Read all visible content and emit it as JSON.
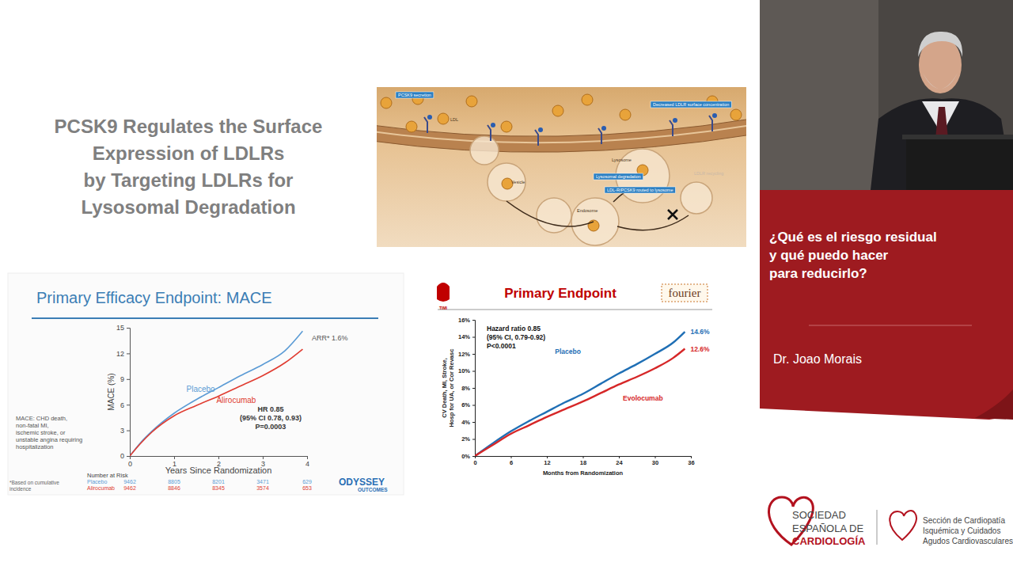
{
  "slide": {
    "title": [
      "PCSK9 Regulates the Surface",
      "Expression of LDLRs",
      "by Targeting LDLRs for",
      "Lysosomal Degradation"
    ]
  },
  "diagram": {
    "labels": [
      "PCSK9 secretion",
      "LDL",
      "Decreased LDLR surface concentration",
      "Lysosome",
      "Lysosomal degradation",
      "LDL-R/PCSK9 routed to lysosome",
      "Endosome",
      "Vesicle",
      "LDLR recycling"
    ]
  },
  "sidebar": {
    "talk_title": [
      "¿Qué es el riesgo residual",
      "y qué puedo hacer",
      "para reducirlo?"
    ],
    "speaker": "Dr. Joao Morais",
    "society": [
      "SOCIEDAD",
      "ESPAÑOLA DE",
      "CARDIOLOGÍA"
    ],
    "section": [
      "Sección de Cardiopatía",
      "Isquémica y Cuidados",
      "Agudos Cardiovasculares"
    ]
  },
  "chart_data": [
    {
      "type": "line",
      "title": "Primary Efficacy Endpoint: MACE",
      "x_label": "Years Since Randomization",
      "y_label": "MACE (%)",
      "x": [
        0,
        0.25,
        0.5,
        1,
        1.5,
        2,
        2.5,
        3,
        3.5,
        3.9
      ],
      "series": [
        {
          "name": "Placebo",
          "color": "#5b9bd5",
          "values": [
            0,
            1.6,
            2.9,
            5.0,
            6.6,
            8.0,
            9.4,
            10.7,
            12.3,
            14.6
          ]
        },
        {
          "name": "Alirocumab",
          "color": "#e03c31",
          "values": [
            0,
            1.5,
            2.8,
            4.7,
            5.9,
            7.0,
            8.2,
            9.4,
            10.9,
            12.5
          ]
        }
      ],
      "xlim": [
        0,
        4
      ],
      "xticks": [
        0,
        1,
        2,
        3,
        4
      ],
      "ylim": [
        0,
        15
      ],
      "yticks": [
        0,
        3,
        6,
        9,
        12,
        15
      ],
      "annotations": [
        "ARR* 1.6%",
        "HR 0.85",
        "(95% CI 0.78, 0.93)",
        "P=0.0003"
      ],
      "notes": [
        "MACE: CHD death,",
        "non-fatal MI,",
        "ischemic stroke, or",
        "unstable angina requiring",
        "hospitalization"
      ],
      "footnote": [
        "*Based on cumulative",
        "incidence"
      ],
      "risk_table": {
        "title": "Number at Risk",
        "rows": [
          {
            "name": "Placebo",
            "values": [
              9462,
              8805,
              8201,
              3471,
              629
            ]
          },
          {
            "name": "Alirocumab",
            "values": [
              9462,
              8846,
              8345,
              3574,
              653
            ]
          }
        ]
      },
      "logo": [
        "ODYSSEY",
        "OUTCOMES"
      ]
    },
    {
      "type": "line",
      "title": "Primary Endpoint",
      "x_label": "Months from Randomization",
      "y_label": [
        "CV Death, MI, Stroke,",
        "Hosp for UA, or Cor Revasc"
      ],
      "x": [
        0,
        3,
        6,
        9,
        12,
        15,
        18,
        21,
        24,
        27,
        30,
        33,
        35
      ],
      "series": [
        {
          "name": "Placebo",
          "color": "#1f6fb5",
          "values": [
            0,
            1.5,
            2.9,
            4.1,
            5.2,
            6.3,
            7.3,
            8.5,
            9.7,
            10.8,
            12.0,
            13.3,
            14.6
          ]
        },
        {
          "name": "Evolocumab",
          "color": "#d62728",
          "values": [
            0,
            1.3,
            2.6,
            3.6,
            4.6,
            5.5,
            6.4,
            7.4,
            8.4,
            9.3,
            10.3,
            11.5,
            12.6
          ]
        }
      ],
      "xlim": [
        0,
        36
      ],
      "xticks": [
        0,
        6,
        12,
        18,
        24,
        30,
        36
      ],
      "ylim": [
        0,
        16
      ],
      "yticks": [
        {
          "value": 0,
          "label": "0%"
        },
        {
          "value": 2,
          "label": "2%"
        },
        {
          "value": 4,
          "label": "4%"
        },
        {
          "value": 6,
          "label": "6%"
        },
        {
          "value": 8,
          "label": "8%"
        },
        {
          "value": 10,
          "label": "10%"
        },
        {
          "value": 12,
          "label": "12%"
        },
        {
          "value": 14,
          "label": "14%"
        },
        {
          "value": 16,
          "label": "16%"
        }
      ],
      "annotations": [
        "Hazard ratio 0.85",
        "(95% CI, 0.79-0.92)",
        "P<0.0001",
        "14.6%",
        "12.6%"
      ],
      "logo": [
        "TIMI",
        "fourier"
      ]
    }
  ]
}
